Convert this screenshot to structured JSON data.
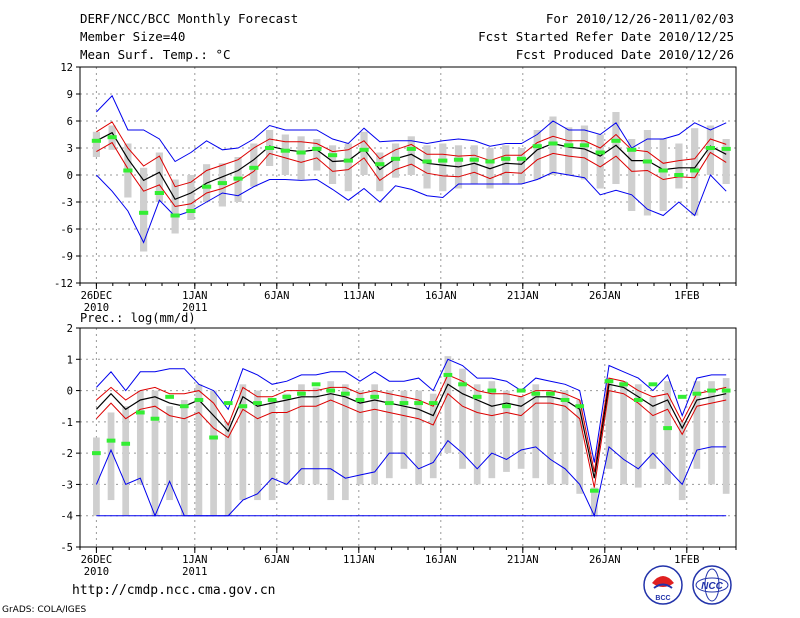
{
  "header": {
    "left": [
      "DERF/NCC/BCC Monthly Forecast",
      "Member Size=40",
      "Mean Surf. Temp.: °C"
    ],
    "right": [
      "For 2010/12/26-2011/02/03",
      "Fcst Started Refer Date 2010/12/25",
      "Fcst Produced Date 2010/12/26"
    ]
  },
  "footer": {
    "url": "http://cmdp.ncc.cma.gov.cn",
    "credit": "GrADS: COLA/IGES"
  },
  "logos": {
    "bcc": "BCC",
    "ncc": "NCC"
  },
  "colors": {
    "box": "#cfcfcf",
    "mean": "#000000",
    "sd": "#dd0000",
    "range": "#0000ee",
    "marker": "#33ee33",
    "dash": "#999999"
  },
  "chart_data": [
    {
      "type": "line",
      "name": "temperature",
      "title": "Mean Surf. Temp.: °C",
      "xlabel": "",
      "ylabel": "",
      "ylim": [
        -12,
        12
      ],
      "yticks": [
        -12,
        -9,
        -6,
        -3,
        0,
        3,
        6,
        9,
        12
      ],
      "xlim": [
        0,
        40
      ],
      "xticks": [
        {
          "x": 1,
          "l1": "26DEC",
          "l2": "2010"
        },
        {
          "x": 7,
          "l1": "1JAN",
          "l2": "2011"
        },
        {
          "x": 12,
          "l1": "6JAN",
          "l2": ""
        },
        {
          "x": 17,
          "l1": "11JAN",
          "l2": ""
        },
        {
          "x": 22,
          "l1": "16JAN",
          "l2": ""
        },
        {
          "x": 27,
          "l1": "21JAN",
          "l2": ""
        },
        {
          "x": 32,
          "l1": "26JAN",
          "l2": ""
        },
        {
          "x": 37,
          "l1": "1FEB",
          "l2": ""
        }
      ],
      "mean": [
        3.8,
        4.7,
        1.8,
        -0.6,
        0.3,
        -2.7,
        -2.0,
        -0.9,
        -0.2,
        0.5,
        1.7,
        3.2,
        2.8,
        2.6,
        2.8,
        1.5,
        1.6,
        2.9,
        0.6,
        1.8,
        2.3,
        1.3,
        1.1,
        0.9,
        1.3,
        0.7,
        1.3,
        1.2,
        2.8,
        3.5,
        3.1,
        2.9,
        2.1,
        3.3,
        1.6,
        1.6,
        0.6,
        0.8,
        0.8,
        3.2,
        2.3
      ],
      "sd_upper": [
        4.8,
        5.9,
        3.0,
        1.0,
        2.1,
        -1.3,
        -0.8,
        0.5,
        1.1,
        1.7,
        3.0,
        4.0,
        3.7,
        3.7,
        3.5,
        2.6,
        2.8,
        3.8,
        1.8,
        2.8,
        3.4,
        2.3,
        2.3,
        2.1,
        2.2,
        1.6,
        2.2,
        2.2,
        3.6,
        4.3,
        3.8,
        3.8,
        3.0,
        4.5,
        2.8,
        2.6,
        1.3,
        1.6,
        1.8,
        4.0,
        3.4
      ],
      "sd_lower": [
        2.6,
        3.6,
        0.7,
        -1.8,
        -1.1,
        -3.5,
        -3.2,
        -2.0,
        -1.5,
        -0.7,
        0.4,
        2.4,
        1.9,
        1.4,
        1.9,
        0.4,
        0.6,
        1.9,
        -0.6,
        0.6,
        1.2,
        0.2,
        -0.1,
        -0.2,
        0.3,
        -0.4,
        0.3,
        0.2,
        1.7,
        2.4,
        2.1,
        1.9,
        0.9,
        2.1,
        0.4,
        0.5,
        -0.5,
        -0.2,
        -0.3,
        2.5,
        1.4
      ],
      "max": [
        7.0,
        8.8,
        5.0,
        5.0,
        4.0,
        1.5,
        2.5,
        3.8,
        2.8,
        3.0,
        4.0,
        5.5,
        5.0,
        5.0,
        5.0,
        4.0,
        3.5,
        5.2,
        3.7,
        3.8,
        3.8,
        3.5,
        3.8,
        4.0,
        3.8,
        3.2,
        3.5,
        3.5,
        4.5,
        6.0,
        5.0,
        5.0,
        4.5,
        5.8,
        3.0,
        4.0,
        4.0,
        4.5,
        5.8,
        5.0,
        5.8
      ],
      "min": [
        0.0,
        -1.8,
        -4.0,
        -7.5,
        -2.8,
        -4.6,
        -4.0,
        -3.0,
        -2.0,
        -2.3,
        -1.3,
        -0.5,
        -0.5,
        -0.6,
        -0.5,
        -1.6,
        -2.8,
        -1.5,
        -3.0,
        -1.2,
        -1.6,
        -2.3,
        -2.5,
        -1.0,
        -1.0,
        -1.0,
        -1.0,
        -1.0,
        -0.5,
        0.3,
        0.0,
        -0.3,
        -2.2,
        -1.7,
        -2.2,
        -3.8,
        -4.5,
        -3.0,
        -4.5,
        0.0,
        -1.8
      ],
      "box_high": [
        4.8,
        5.5,
        3.5,
        0.8,
        2.5,
        -0.5,
        0.0,
        1.2,
        1.3,
        2.0,
        3.5,
        5.0,
        4.5,
        4.3,
        4.0,
        3.3,
        3.5,
        4.8,
        2.5,
        3.5,
        4.3,
        3.3,
        3.5,
        3.3,
        3.3,
        3.0,
        3.3,
        3.0,
        5.0,
        6.5,
        5.3,
        5.5,
        4.5,
        7.0,
        4.0,
        5.0,
        4.0,
        3.5,
        5.2,
        5.5,
        4.0
      ],
      "box_low": [
        2.0,
        2.8,
        -2.5,
        -8.5,
        -3.0,
        -6.5,
        -5.0,
        -3.0,
        -3.5,
        -3.0,
        -1.3,
        1.0,
        0.0,
        -0.5,
        0.5,
        -1.0,
        -1.8,
        0.0,
        -1.8,
        -0.3,
        0.0,
        -1.5,
        -1.8,
        -1.5,
        -1.0,
        -1.5,
        -1.0,
        -1.0,
        -0.5,
        0.0,
        0.0,
        -0.5,
        -1.5,
        -1.0,
        -4.0,
        -4.5,
        -4.0,
        -1.5,
        -4.5,
        0.0,
        -1.0
      ],
      "marker": [
        3.8,
        4.2,
        0.5,
        -4.2,
        -2.0,
        -4.5,
        -4.0,
        -1.3,
        -0.9,
        -0.4,
        0.8,
        3.0,
        2.7,
        2.5,
        2.9,
        2.2,
        1.6,
        2.8,
        1.2,
        1.8,
        2.9,
        1.5,
        1.6,
        1.7,
        1.7,
        1.5,
        1.8,
        1.8,
        3.2,
        3.5,
        3.3,
        3.3,
        2.5,
        3.8,
        2.8,
        1.5,
        0.5,
        0.0,
        0.5,
        3.0,
        2.9
      ],
      "legend": []
    },
    {
      "type": "line",
      "name": "precipitation",
      "title": "Prec.: log(mm/d)",
      "xlabel": "",
      "ylabel": "",
      "ylim": [
        -5,
        2
      ],
      "yticks": [
        -5,
        -4,
        -3,
        -2,
        -1,
        0,
        1,
        2
      ],
      "xlim": [
        0,
        40
      ],
      "xticks": [
        {
          "x": 1,
          "l1": "26DEC",
          "l2": "2010"
        },
        {
          "x": 7,
          "l1": "1JAN",
          "l2": "2011"
        },
        {
          "x": 12,
          "l1": "6JAN",
          "l2": ""
        },
        {
          "x": 17,
          "l1": "11JAN",
          "l2": ""
        },
        {
          "x": 22,
          "l1": "16JAN",
          "l2": ""
        },
        {
          "x": 27,
          "l1": "21JAN",
          "l2": ""
        },
        {
          "x": 32,
          "l1": "26JAN",
          "l2": ""
        },
        {
          "x": 37,
          "l1": "1FEB",
          "l2": ""
        }
      ],
      "mean": [
        -0.6,
        -0.1,
        -0.6,
        -0.3,
        -0.2,
        -0.4,
        -0.5,
        -0.3,
        -0.8,
        -1.3,
        -0.2,
        -0.5,
        -0.4,
        -0.3,
        -0.2,
        -0.2,
        -0.1,
        -0.2,
        -0.4,
        -0.3,
        -0.4,
        -0.5,
        -0.6,
        -0.8,
        0.2,
        -0.1,
        -0.3,
        -0.5,
        -0.4,
        -0.5,
        -0.2,
        -0.2,
        -0.3,
        -0.6,
        -2.8,
        0.2,
        0.1,
        -0.2,
        -0.5,
        -0.3,
        -1.2,
        -0.3,
        -0.2,
        -0.1
      ],
      "sd_upper": [
        -0.3,
        0.1,
        -0.3,
        0.0,
        0.1,
        -0.1,
        -0.1,
        0.0,
        -0.4,
        -1.1,
        0.1,
        -0.2,
        -0.2,
        0.0,
        0.0,
        0.0,
        0.1,
        0.1,
        -0.1,
        0.0,
        -0.1,
        -0.2,
        -0.3,
        -0.5,
        0.5,
        0.3,
        0.0,
        -0.1,
        -0.1,
        -0.2,
        0.0,
        0.0,
        -0.1,
        -0.3,
        -2.6,
        0.4,
        0.3,
        0.0,
        -0.2,
        -0.1,
        -1.0,
        -0.1,
        0.0,
        0.1
      ],
      "sd_lower": [
        -0.9,
        -0.4,
        -0.9,
        -0.6,
        -0.5,
        -0.8,
        -0.9,
        -0.7,
        -1.2,
        -1.5,
        -0.6,
        -0.9,
        -0.7,
        -0.7,
        -0.5,
        -0.5,
        -0.3,
        -0.5,
        -0.7,
        -0.6,
        -0.7,
        -0.8,
        -0.9,
        -1.1,
        -0.1,
        -0.5,
        -0.7,
        -0.8,
        -0.7,
        -0.8,
        -0.4,
        -0.4,
        -0.5,
        -0.9,
        -3.1,
        0.0,
        -0.1,
        -0.4,
        -0.8,
        -0.6,
        -1.4,
        -0.5,
        -0.4,
        -0.3
      ],
      "max": [
        0.1,
        0.6,
        0.0,
        0.6,
        0.6,
        0.7,
        0.7,
        0.2,
        0.0,
        -0.6,
        0.7,
        0.5,
        0.2,
        0.3,
        0.5,
        0.5,
        0.6,
        0.6,
        0.3,
        0.6,
        0.3,
        0.3,
        0.4,
        0.0,
        1.0,
        0.8,
        0.4,
        0.4,
        0.3,
        0.0,
        0.4,
        0.3,
        0.2,
        0.0,
        -2.3,
        0.8,
        0.6,
        0.4,
        0.0,
        0.5,
        -0.8,
        0.4,
        0.5,
        0.5
      ],
      "min": [
        -3.0,
        -1.9,
        -3.0,
        -2.8,
        -4.0,
        -2.9,
        -4.0,
        -4.0,
        -4.0,
        -4.0,
        -3.5,
        -3.3,
        -2.8,
        -3.0,
        -2.5,
        -2.5,
        -2.5,
        -2.8,
        -2.7,
        -2.6,
        -2.0,
        -2.0,
        -2.5,
        -2.3,
        -1.6,
        -2.0,
        -2.5,
        -2.0,
        -2.2,
        -1.9,
        -1.8,
        -2.2,
        -2.5,
        -3.0,
        -4.0,
        -1.8,
        -2.2,
        -2.5,
        -2.0,
        -2.5,
        -3.0,
        -1.9,
        -1.8,
        -1.8
      ],
      "box_high": [
        -1.5,
        -0.7,
        -0.5,
        0.0,
        0.0,
        -0.5,
        -0.3,
        0.2,
        0.0,
        -1.0,
        0.2,
        0.0,
        -0.3,
        -0.1,
        0.2,
        0.1,
        0.3,
        0.2,
        0.0,
        0.2,
        0.0,
        0.0,
        0.0,
        -0.1,
        1.1,
        0.7,
        0.2,
        0.3,
        0.0,
        -0.2,
        0.2,
        0.0,
        0.0,
        -0.3,
        -3.1,
        0.4,
        0.3,
        0.2,
        -0.2,
        0.3,
        -1.0,
        0.3,
        0.3,
        0.4
      ],
      "box_low": [
        -4.0,
        -3.5,
        -4.0,
        -3.0,
        -4.0,
        -3.5,
        -4.0,
        -4.0,
        -4.0,
        -4.0,
        -3.5,
        -3.5,
        -3.5,
        -3.0,
        -3.0,
        -3.0,
        -3.5,
        -3.5,
        -3.0,
        -3.0,
        -2.8,
        -2.5,
        -3.0,
        -2.8,
        -2.0,
        -2.5,
        -3.0,
        -2.8,
        -2.6,
        -2.5,
        -2.8,
        -3.0,
        -3.0,
        -3.3,
        -4.0,
        -2.5,
        -3.0,
        -3.1,
        -2.5,
        -3.0,
        -3.5,
        -2.5,
        -3.0,
        -3.3
      ],
      "marker": [
        -2.0,
        -1.6,
        -1.7,
        -0.7,
        -0.9,
        -0.2,
        -0.5,
        -0.3,
        -1.5,
        -0.4,
        -0.5,
        -0.4,
        -0.3,
        -0.2,
        -0.1,
        0.2,
        0.0,
        -0.1,
        -0.3,
        -0.2,
        -0.4,
        -0.4,
        -0.4,
        -0.4,
        0.5,
        0.2,
        -0.2,
        0.0,
        -0.5,
        0.0,
        -0.1,
        -0.1,
        -0.3,
        -0.5,
        -3.2,
        0.3,
        0.2,
        -0.3,
        0.2,
        -1.2,
        -0.2,
        -0.1,
        0.0,
        0.0
      ],
      "legend": []
    }
  ]
}
